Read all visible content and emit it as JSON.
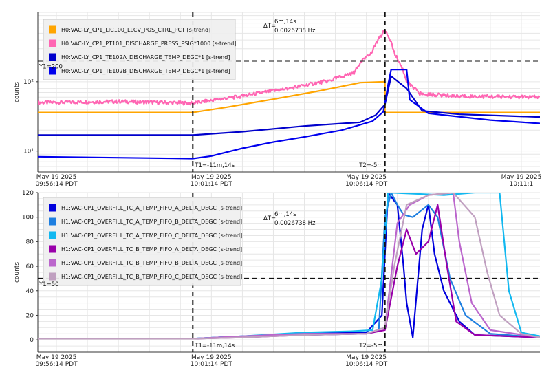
{
  "chart_data": [
    {
      "type": "line",
      "yscale": "log",
      "ylabel": "counts",
      "ylim": [
        5,
        1000
      ],
      "y_ticks": [
        {
          "value": 10,
          "label": "10¹"
        },
        {
          "value": 100,
          "label": "10²"
        }
      ],
      "x_ticks": [
        {
          "t": 0,
          "date": "May 19 2025",
          "time": "09:56:14 PDT"
        },
        {
          "t": 5,
          "date": "May 19 2025",
          "time": "10:01:14 PDT"
        },
        {
          "t": 10,
          "date": "May 19 2025",
          "time": "10:06:14 PDT"
        },
        {
          "t": 15,
          "date": "May 19 2025",
          "time": "10:11:1"
        }
      ],
      "xlim": [
        -0.6,
        15.6
      ],
      "cursors": {
        "t1": {
          "t": 4.4,
          "label": "T1=-11m,14s"
        },
        "t2": {
          "t": 10.6,
          "label": "T2=-5m"
        },
        "y1": {
          "value": 200,
          "label": "Y1=200"
        },
        "delta": {
          "label": "ΔT=",
          "duration": "6m,14s",
          "freq": "0.0026738 Hz"
        }
      },
      "grid": true,
      "legend_position": "top-left",
      "series": [
        {
          "name": "H0:VAC-LY_CP1_LIC100_LLCV_POS_CTRL_PCT [s-trend]",
          "color": "#FFA500",
          "points": [
            [
              -0.6,
              36
            ],
            [
              4.4,
              36
            ],
            [
              5.5,
              43
            ],
            [
              7,
              56
            ],
            [
              8.5,
              74
            ],
            [
              9.8,
              97
            ],
            [
              10.6,
              100
            ],
            [
              10.6,
              36
            ],
            [
              15.6,
              36
            ]
          ]
        },
        {
          "name": "H0:VAC-LY_CP1_PT101_DISCHARGE_PRESS_PSIG*1000 [s-trend]",
          "color": "#FF66B3",
          "points": [
            [
              -0.6,
              50
            ],
            [
              2,
              52
            ],
            [
              4.4,
              49
            ],
            [
              6,
              62
            ],
            [
              7.5,
              80
            ],
            [
              8.8,
              103
            ],
            [
              9.6,
              135
            ],
            [
              10.2,
              280
            ],
            [
              10.5,
              480
            ],
            [
              10.6,
              560
            ],
            [
              10.9,
              260
            ],
            [
              11.3,
              100
            ],
            [
              11.7,
              67
            ],
            [
              13,
              62
            ],
            [
              15.6,
              60
            ]
          ]
        },
        {
          "name": "H0:VAC-LY_CP1_TE102A_DISCHARGE_TEMP_DEGC*1 [s-trend]",
          "color": "#0000CC",
          "points": [
            [
              -0.6,
              17
            ],
            [
              4.4,
              17
            ],
            [
              6,
              19
            ],
            [
              8,
              23
            ],
            [
              9.8,
              26
            ],
            [
              10.3,
              33
            ],
            [
              10.6,
              47
            ],
            [
              10.8,
              120
            ],
            [
              11.3,
              80
            ],
            [
              11.8,
              38
            ],
            [
              13,
              34
            ],
            [
              15.6,
              31
            ]
          ]
        },
        {
          "name": "H0:VAC-LY_CP1_TE102B_DISCHARGE_TEMP_DEGC*1 [s-trend]",
          "color": "#0000EE",
          "points": [
            [
              -0.6,
              8.3
            ],
            [
              4.4,
              7.8
            ],
            [
              5,
              8.5
            ],
            [
              6,
              11
            ],
            [
              7,
              13.5
            ],
            [
              8,
              16
            ],
            [
              9.2,
              20
            ],
            [
              10.2,
              27
            ],
            [
              10.55,
              37
            ],
            [
              10.7,
              90
            ],
            [
              10.8,
              150
            ],
            [
              11.3,
              150
            ],
            [
              11.4,
              55
            ],
            [
              12,
              35
            ],
            [
              14,
              28
            ],
            [
              15.6,
              25
            ]
          ]
        }
      ]
    },
    {
      "type": "line",
      "ylabel": "counts",
      "ylim": [
        -10,
        120
      ],
      "y_ticks": [
        0,
        20,
        40,
        60,
        80,
        100,
        120
      ],
      "x_ticks": [
        {
          "t": 0,
          "date": "May 19 2025",
          "time": "09:56:14 PDT"
        },
        {
          "t": 5,
          "date": "May 19 2025",
          "time": "10:01:14 PDT"
        },
        {
          "t": 10,
          "date": "May 19 2025",
          "time": "10:06:14 PDT"
        }
      ],
      "xlim": [
        -0.6,
        15.6
      ],
      "cursors": {
        "t1": {
          "t": 4.4,
          "label": "T1=-11m,14s"
        },
        "t2": {
          "t": 10.6,
          "label": "T2=-5m"
        },
        "y1": {
          "value": 50,
          "label": "Y1=50"
        },
        "delta": {
          "label": "ΔT=",
          "duration": "6m,14s",
          "freq": "0.0026738 Hz"
        }
      },
      "grid": true,
      "legend_position": "top-left",
      "series": [
        {
          "name": "H1:VAC-CP1_OVERFILL_TC_A_TEMP_FIFO_A_DELTA_DEGC [s-trend]",
          "color": "#0000DD",
          "points": [
            [
              -0.6,
              1
            ],
            [
              4.4,
              1
            ],
            [
              6,
              3
            ],
            [
              8,
              5
            ],
            [
              10,
              6
            ],
            [
              10.5,
              20
            ],
            [
              10.7,
              120
            ],
            [
              11,
              110
            ],
            [
              11.2,
              60
            ],
            [
              11.3,
              30
            ],
            [
              11.5,
              2
            ],
            [
              11.8,
              90
            ],
            [
              12,
              110
            ],
            [
              12.2,
              70
            ],
            [
              12.5,
              40
            ],
            [
              13,
              15
            ],
            [
              13.5,
              4
            ],
            [
              15.6,
              2
            ]
          ]
        },
        {
          "name": "H1:VAC-CP1_OVERFILL_TC_A_TEMP_FIFO_B_DELTA_DEGC [s-trend]",
          "color": "#1E7FE0",
          "points": [
            [
              -0.6,
              1
            ],
            [
              4.4,
              1
            ],
            [
              6,
              3
            ],
            [
              8,
              4
            ],
            [
              10,
              5
            ],
            [
              10.4,
              8
            ],
            [
              10.6,
              100
            ],
            [
              10.8,
              120
            ],
            [
              11,
              110
            ],
            [
              11.2,
              102
            ],
            [
              11.5,
              100
            ],
            [
              12,
              110
            ],
            [
              12.3,
              100
            ],
            [
              12.7,
              50
            ],
            [
              13.2,
              20
            ],
            [
              14,
              5
            ],
            [
              15.6,
              2
            ]
          ]
        },
        {
          "name": "H1:VAC-CP1_OVERFILL_TC_A_TEMP_FIFO_C_DELTA_DEGC [s-trend]",
          "color": "#12B8F0",
          "points": [
            [
              -0.6,
              1
            ],
            [
              4.4,
              1
            ],
            [
              6,
              3
            ],
            [
              8,
              6
            ],
            [
              9.5,
              7
            ],
            [
              10.2,
              8
            ],
            [
              10.5,
              50
            ],
            [
              10.7,
              120
            ],
            [
              12.5,
              118
            ],
            [
              13.5,
              120
            ],
            [
              14.3,
              120
            ],
            [
              14.6,
              40
            ],
            [
              15,
              6
            ],
            [
              15.6,
              3
            ]
          ]
        },
        {
          "name": "H1:VAC-CP1_OVERFILL_TC_B_TEMP_FIFO_A_DELTA_DEGC [s-trend]",
          "color": "#9900AA",
          "points": [
            [
              -0.6,
              1
            ],
            [
              4.4,
              1
            ],
            [
              6,
              2
            ],
            [
              8,
              4
            ],
            [
              10,
              5
            ],
            [
              10.6,
              8
            ],
            [
              11,
              60
            ],
            [
              11.3,
              90
            ],
            [
              11.6,
              70
            ],
            [
              12,
              80
            ],
            [
              12.3,
              110
            ],
            [
              12.6,
              60
            ],
            [
              12.9,
              15
            ],
            [
              13.5,
              4
            ],
            [
              15.6,
              2
            ]
          ]
        },
        {
          "name": "H1:VAC-CP1_OVERFILL_TC_B_TEMP_FIFO_B_DELTA_DEGC [s-trend]",
          "color": "#BB66CC",
          "points": [
            [
              -0.6,
              1
            ],
            [
              4.4,
              1
            ],
            [
              6,
              3
            ],
            [
              8,
              5
            ],
            [
              10,
              5
            ],
            [
              10.6,
              10
            ],
            [
              11,
              95
            ],
            [
              11.4,
              110
            ],
            [
              12,
              118
            ],
            [
              12.8,
              120
            ],
            [
              13,
              80
            ],
            [
              13.4,
              30
            ],
            [
              14,
              8
            ],
            [
              15.6,
              2
            ]
          ]
        },
        {
          "name": "H1:VAC-CP1_OVERFILL_TC_B_TEMP_FIFO_C_DELTA_DEGC [s-trend]",
          "color": "#C0A0C0",
          "points": [
            [
              -0.6,
              1
            ],
            [
              4.4,
              1
            ],
            [
              6,
              2
            ],
            [
              8,
              4
            ],
            [
              10,
              5
            ],
            [
              10.6,
              10
            ],
            [
              10.9,
              60
            ],
            [
              11.3,
              110
            ],
            [
              12,
              118
            ],
            [
              12.8,
              120
            ],
            [
              13.5,
              100
            ],
            [
              13.9,
              55
            ],
            [
              14.3,
              20
            ],
            [
              15,
              5
            ],
            [
              15.6,
              2
            ]
          ]
        }
      ]
    }
  ]
}
